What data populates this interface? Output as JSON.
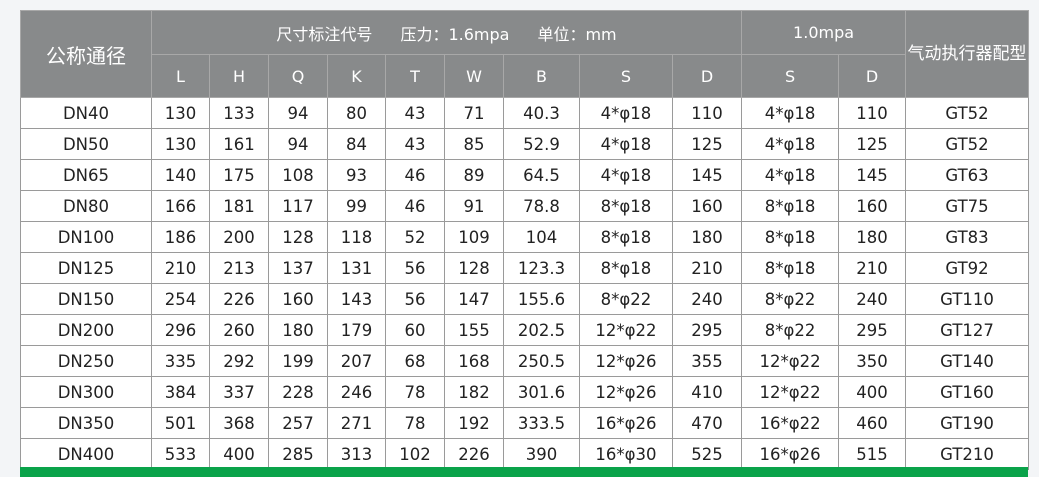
{
  "header": {
    "nominal_label": "公称通径",
    "group_title": "尺寸标注代号",
    "pressure_label": "压力：1.6mpa",
    "unit_label": "单位：mm",
    "group2_title": "1.0mpa",
    "actuator_label": "气动执行器配型",
    "columns": [
      "L",
      "H",
      "Q",
      "K",
      "T",
      "W",
      "B",
      "S",
      "D",
      "S",
      "D"
    ]
  },
  "rows": [
    [
      "DN40",
      "130",
      "133",
      "94",
      "80",
      "43",
      "71",
      "40.3",
      "4*φ18",
      "110",
      "4*φ18",
      "110",
      "GT52"
    ],
    [
      "DN50",
      "130",
      "161",
      "94",
      "84",
      "43",
      "85",
      "52.9",
      "4*φ18",
      "125",
      "4*φ18",
      "125",
      "GT52"
    ],
    [
      "DN65",
      "140",
      "175",
      "108",
      "93",
      "46",
      "89",
      "64.5",
      "4*φ18",
      "145",
      "4*φ18",
      "145",
      "GT63"
    ],
    [
      "DN80",
      "166",
      "181",
      "117",
      "99",
      "46",
      "91",
      "78.8",
      "8*φ18",
      "160",
      "8*φ18",
      "160",
      "GT75"
    ],
    [
      "DN100",
      "186",
      "200",
      "128",
      "118",
      "52",
      "109",
      "104",
      "8*φ18",
      "180",
      "8*φ18",
      "180",
      "GT83"
    ],
    [
      "DN125",
      "210",
      "213",
      "137",
      "131",
      "56",
      "128",
      "123.3",
      "8*φ18",
      "210",
      "8*φ18",
      "210",
      "GT92"
    ],
    [
      "DN150",
      "254",
      "226",
      "160",
      "143",
      "56",
      "147",
      "155.6",
      "8*φ22",
      "240",
      "8*φ22",
      "240",
      "GT110"
    ],
    [
      "DN200",
      "296",
      "260",
      "180",
      "179",
      "60",
      "155",
      "202.5",
      "12*φ22",
      "295",
      "8*φ22",
      "295",
      "GT127"
    ],
    [
      "DN250",
      "335",
      "292",
      "199",
      "207",
      "68",
      "168",
      "250.5",
      "12*φ26",
      "355",
      "12*φ22",
      "350",
      "GT140"
    ],
    [
      "DN300",
      "384",
      "337",
      "228",
      "246",
      "78",
      "182",
      "301.6",
      "12*φ26",
      "410",
      "12*φ22",
      "400",
      "GT160"
    ],
    [
      "DN350",
      "501",
      "368",
      "257",
      "271",
      "78",
      "192",
      "333.5",
      "16*φ26",
      "470",
      "16*φ22",
      "460",
      "GT190"
    ],
    [
      "DN400",
      "533",
      "400",
      "285",
      "313",
      "102",
      "226",
      "390",
      "16*φ30",
      "525",
      "16*φ26",
      "515",
      "GT210"
    ]
  ],
  "colors": {
    "header_bg": "#888a8b",
    "footer_bar": "#0aa34a"
  }
}
